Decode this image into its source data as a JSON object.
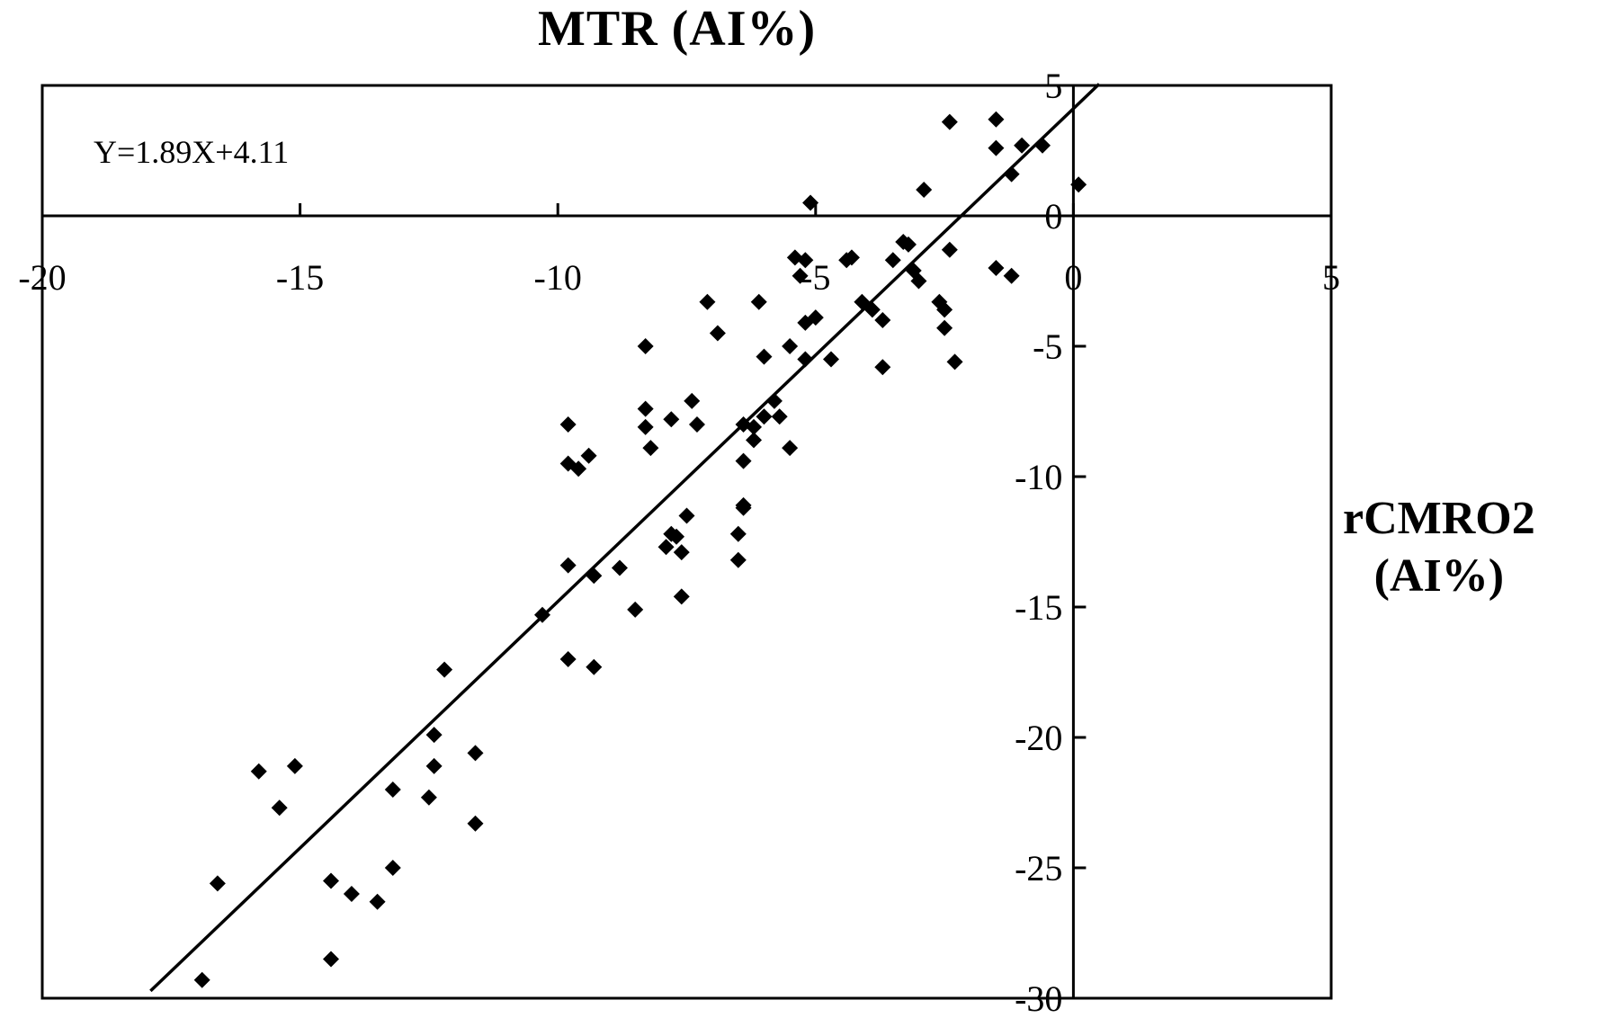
{
  "chart_data": {
    "type": "scatter",
    "xlabel": "MTR  (AI%)",
    "ylabel_line1": "rCMRO2",
    "ylabel_line2": "(AI%)",
    "xlim": [
      -20,
      5
    ],
    "ylim": [
      -30,
      5
    ],
    "x_ticks": [
      -20,
      -15,
      -10,
      -5,
      0,
      5
    ],
    "y_ticks": [
      5,
      0,
      -5,
      -10,
      -15,
      -20,
      -25,
      -30
    ],
    "x_tick_labels": [
      "-20",
      "-15",
      "-10",
      "-5",
      "0",
      "5"
    ],
    "y_tick_labels": [
      "5",
      "0",
      "-5",
      "-10",
      "-15",
      "-20",
      "-25",
      "-30"
    ],
    "regression": {
      "label": "Y=1.89X+4.11",
      "slope": 1.89,
      "intercept": 4.11,
      "x_from": -17.9,
      "x_to": 0.5
    },
    "marker": "diamond",
    "color": "#000000",
    "points": [
      [
        -2.4,
        3.6
      ],
      [
        -1.5,
        3.7
      ],
      [
        -1.5,
        2.6
      ],
      [
        -1.0,
        2.7
      ],
      [
        -0.6,
        2.7
      ],
      [
        -1.2,
        1.6
      ],
      [
        0.1,
        1.2
      ],
      [
        -2.9,
        1.0
      ],
      [
        -5.1,
        0.5
      ],
      [
        -2.4,
        -1.3
      ],
      [
        -3.3,
        -1.0
      ],
      [
        -3.2,
        -1.1
      ],
      [
        -1.5,
        -2.0
      ],
      [
        -1.2,
        -2.3
      ],
      [
        -3.5,
        -1.7
      ],
      [
        -3.1,
        -2.1
      ],
      [
        -3.0,
        -2.5
      ],
      [
        -4.3,
        -1.6
      ],
      [
        -4.4,
        -1.7
      ],
      [
        -5.4,
        -1.6
      ],
      [
        -5.2,
        -1.7
      ],
      [
        -5.3,
        -2.3
      ],
      [
        -2.6,
        -3.3
      ],
      [
        -2.5,
        -3.6
      ],
      [
        -4.1,
        -3.3
      ],
      [
        -3.9,
        -3.6
      ],
      [
        -3.7,
        -4.0
      ],
      [
        -5.2,
        -4.1
      ],
      [
        -5.0,
        -3.9
      ],
      [
        -5.5,
        -5.0
      ],
      [
        -2.5,
        -4.3
      ],
      [
        -2.3,
        -5.6
      ],
      [
        -3.7,
        -5.8
      ],
      [
        -4.7,
        -5.5
      ],
      [
        -5.2,
        -5.5
      ],
      [
        -7.1,
        -3.3
      ],
      [
        -6.9,
        -4.5
      ],
      [
        -6.1,
        -3.3
      ],
      [
        -8.3,
        -5.0
      ],
      [
        -6.0,
        -5.4
      ],
      [
        -7.4,
        -7.1
      ],
      [
        -7.3,
        -8.0
      ],
      [
        -8.3,
        -7.4
      ],
      [
        -8.3,
        -8.1
      ],
      [
        -7.8,
        -7.8
      ],
      [
        -8.2,
        -8.9
      ],
      [
        -5.8,
        -7.1
      ],
      [
        -5.7,
        -7.7
      ],
      [
        -6.0,
        -7.7
      ],
      [
        -6.2,
        -8.1
      ],
      [
        -6.4,
        -8.0
      ],
      [
        -6.2,
        -8.6
      ],
      [
        -5.5,
        -8.9
      ],
      [
        -6.4,
        -9.4
      ],
      [
        -9.8,
        -8.0
      ],
      [
        -9.8,
        -9.5
      ],
      [
        -9.6,
        -9.7
      ],
      [
        -9.4,
        -9.2
      ],
      [
        -6.4,
        -11.1
      ],
      [
        -6.4,
        -11.2
      ],
      [
        -6.5,
        -12.2
      ],
      [
        -6.5,
        -13.2
      ],
      [
        -7.5,
        -11.5
      ],
      [
        -7.7,
        -12.3
      ],
      [
        -7.8,
        -12.2
      ],
      [
        -7.9,
        -12.7
      ],
      [
        -7.6,
        -12.9
      ],
      [
        -7.6,
        -14.6
      ],
      [
        -8.8,
        -13.5
      ],
      [
        -8.5,
        -15.1
      ],
      [
        -9.8,
        -13.4
      ],
      [
        -9.3,
        -13.8
      ],
      [
        -10.3,
        -15.3
      ],
      [
        -9.8,
        -17.0
      ],
      [
        -9.3,
        -17.3
      ],
      [
        -12.2,
        -17.4
      ],
      [
        -12.4,
        -19.9
      ],
      [
        -12.4,
        -21.1
      ],
      [
        -12.5,
        -22.3
      ],
      [
        -11.6,
        -20.6
      ],
      [
        -11.6,
        -23.3
      ],
      [
        -13.2,
        -22.0
      ],
      [
        -13.2,
        -25.0
      ],
      [
        -13.5,
        -26.3
      ],
      [
        -14.0,
        -26.0
      ],
      [
        -14.4,
        -25.5
      ],
      [
        -14.4,
        -28.5
      ],
      [
        -15.1,
        -21.1
      ],
      [
        -15.8,
        -21.3
      ],
      [
        -15.4,
        -22.7
      ],
      [
        -16.6,
        -25.6
      ],
      [
        -16.9,
        -29.3
      ]
    ]
  }
}
